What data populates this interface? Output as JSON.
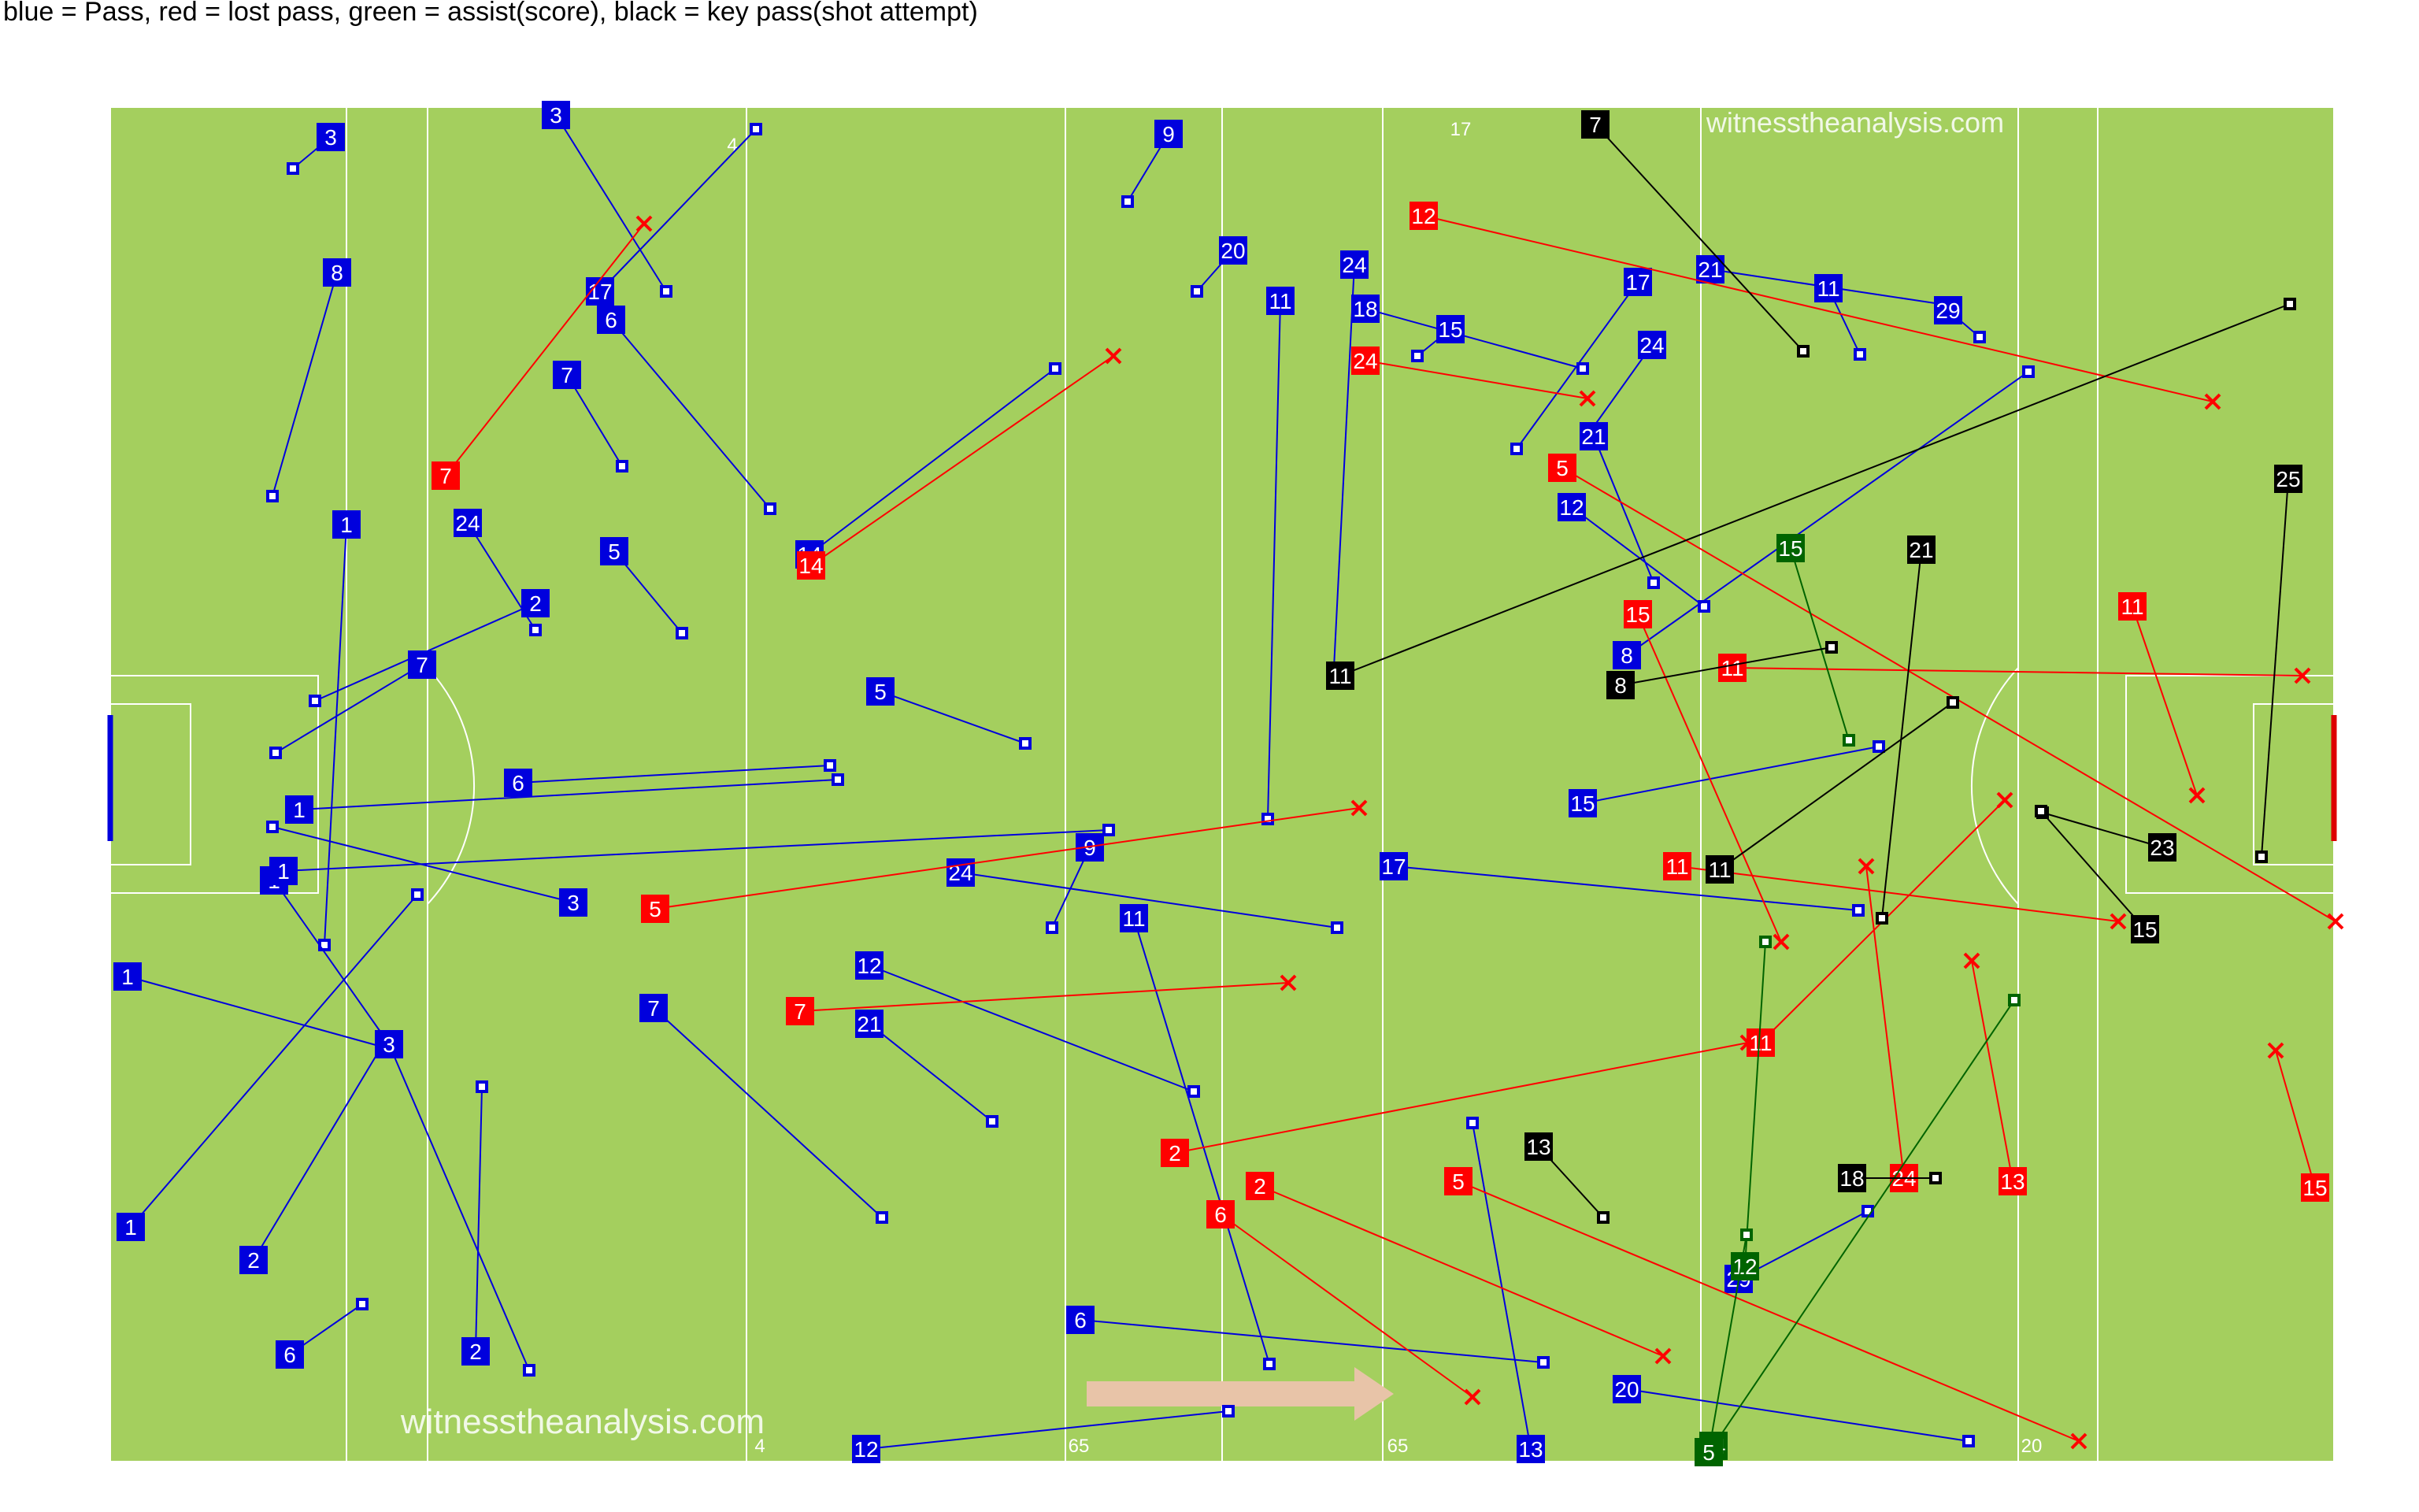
{
  "legend": "blue = Pass, red = lost pass, green = assist(score), black = key pass(shot attempt)",
  "watermark": "witnesstheanalysis.com",
  "colors": {
    "pitch": "#a4cf5e",
    "lines": "#ffffff",
    "pass": "#0000dd",
    "lost": "#ff0000",
    "assist": "#006400",
    "key": "#000000",
    "arrow": "#e8c4a8"
  },
  "chart_data": {
    "type": "pass_map",
    "passes": [
      {
        "type": "pass",
        "start": "3",
        "end": ""
      },
      {
        "type": "pass",
        "start": "8",
        "end": ""
      },
      {
        "type": "pass",
        "start": "3",
        "end": ""
      },
      {
        "type": "pass",
        "start": "17",
        "end": ""
      },
      {
        "type": "pass",
        "start": "6",
        "end": ""
      },
      {
        "type": "pass",
        "start": "7",
        "end": ""
      },
      {
        "type": "pass",
        "start": "1",
        "end": ""
      },
      {
        "type": "pass",
        "start": "24",
        "end": ""
      },
      {
        "type": "pass",
        "start": "2",
        "end": ""
      },
      {
        "type": "pass",
        "start": "5",
        "end": ""
      },
      {
        "type": "pass",
        "start": "7",
        "end": ""
      },
      {
        "type": "pass",
        "start": "1",
        "end": ""
      },
      {
        "type": "pass",
        "start": "5",
        "end": ""
      },
      {
        "type": "pass",
        "start": "3",
        "end": ""
      },
      {
        "type": "pass",
        "start": "6",
        "end": ""
      },
      {
        "type": "pass",
        "start": "1",
        "end": ""
      },
      {
        "type": "pass",
        "start": "1",
        "end": ""
      },
      {
        "type": "pass",
        "start": "1",
        "end": ""
      },
      {
        "type": "pass",
        "start": "2",
        "end": ""
      },
      {
        "type": "pass",
        "start": "1",
        "end": ""
      },
      {
        "type": "pass",
        "start": "3",
        "end": ""
      },
      {
        "type": "pass",
        "start": "2",
        "end": ""
      },
      {
        "type": "pass",
        "start": "6",
        "end": ""
      },
      {
        "type": "pass",
        "start": "9",
        "end": ""
      },
      {
        "type": "pass",
        "start": "20",
        "end": ""
      },
      {
        "type": "pass",
        "start": "11",
        "end": ""
      },
      {
        "type": "pass",
        "start": "24",
        "end": ""
      },
      {
        "type": "pass",
        "start": "18",
        "end": ""
      },
      {
        "type": "pass",
        "start": "15",
        "end": ""
      },
      {
        "type": "pass",
        "start": "17",
        "end": ""
      },
      {
        "type": "pass",
        "start": "21",
        "end": ""
      },
      {
        "type": "pass",
        "start": "11",
        "end": ""
      },
      {
        "type": "pass",
        "start": "29",
        "end": ""
      },
      {
        "type": "pass",
        "start": "24",
        "end": ""
      },
      {
        "type": "pass",
        "start": "21",
        "end": ""
      },
      {
        "type": "pass",
        "start": "12",
        "end": ""
      },
      {
        "type": "pass",
        "start": "8",
        "end": ""
      },
      {
        "type": "pass",
        "start": "9",
        "end": ""
      },
      {
        "type": "pass",
        "start": "24",
        "end": ""
      },
      {
        "type": "pass",
        "start": "12",
        "end": ""
      },
      {
        "type": "pass",
        "start": "11",
        "end": ""
      },
      {
        "type": "pass",
        "start": "17",
        "end": ""
      },
      {
        "type": "pass",
        "start": "21",
        "end": ""
      },
      {
        "type": "pass",
        "start": "7",
        "end": ""
      },
      {
        "type": "pass",
        "start": "6",
        "end": ""
      },
      {
        "type": "pass",
        "start": "12",
        "end": ""
      },
      {
        "type": "pass",
        "start": "14",
        "end": ""
      },
      {
        "type": "pass",
        "start": "15",
        "end": ""
      },
      {
        "type": "pass",
        "start": "13",
        "end": ""
      },
      {
        "type": "pass",
        "start": "29",
        "end": ""
      },
      {
        "type": "pass",
        "start": "20",
        "end": ""
      },
      {
        "type": "lost",
        "start": "7",
        "end": ""
      },
      {
        "type": "lost",
        "start": "14",
        "end": ""
      },
      {
        "type": "lost",
        "start": "12",
        "end": ""
      },
      {
        "type": "lost",
        "start": "24",
        "end": ""
      },
      {
        "type": "lost",
        "start": "5",
        "end": ""
      },
      {
        "type": "lost",
        "start": "5",
        "end": ""
      },
      {
        "type": "lost",
        "start": "7",
        "end": ""
      },
      {
        "type": "lost",
        "start": "2",
        "end": ""
      },
      {
        "type": "lost",
        "start": "6",
        "end": ""
      },
      {
        "type": "lost",
        "start": "2",
        "end": ""
      },
      {
        "type": "lost",
        "start": "5",
        "end": ""
      },
      {
        "type": "lost",
        "start": "11",
        "end": ""
      },
      {
        "type": "lost",
        "start": "11",
        "end": ""
      },
      {
        "type": "lost",
        "start": "11",
        "end": ""
      },
      {
        "type": "lost",
        "start": "15",
        "end": ""
      },
      {
        "type": "lost",
        "start": "24",
        "end": ""
      },
      {
        "type": "lost",
        "start": "13",
        "end": ""
      },
      {
        "type": "lost",
        "start": "15",
        "end": ""
      },
      {
        "type": "lost",
        "start": "11",
        "end": ""
      },
      {
        "type": "assist",
        "start": "15",
        "end": ""
      },
      {
        "type": "assist",
        "start": "12",
        "end": ""
      },
      {
        "type": "assist",
        "start": "24",
        "end": ""
      },
      {
        "type": "assist",
        "start": "5",
        "end": ""
      },
      {
        "type": "key",
        "start": "7",
        "end": ""
      },
      {
        "type": "key",
        "start": "11",
        "end": ""
      },
      {
        "type": "key",
        "start": "21",
        "end": ""
      },
      {
        "type": "key",
        "start": "25",
        "end": ""
      },
      {
        "type": "key",
        "start": "23",
        "end": ""
      },
      {
        "type": "key",
        "start": "15",
        "end": ""
      },
      {
        "type": "key",
        "start": "8",
        "end": ""
      },
      {
        "type": "key",
        "start": "13",
        "end": ""
      },
      {
        "type": "key",
        "start": "18",
        "end": ""
      },
      {
        "type": "key",
        "start": "11",
        "end": ""
      }
    ],
    "pitch_labels": [
      "4",
      "17",
      "65",
      "65",
      "4",
      "20"
    ]
  }
}
